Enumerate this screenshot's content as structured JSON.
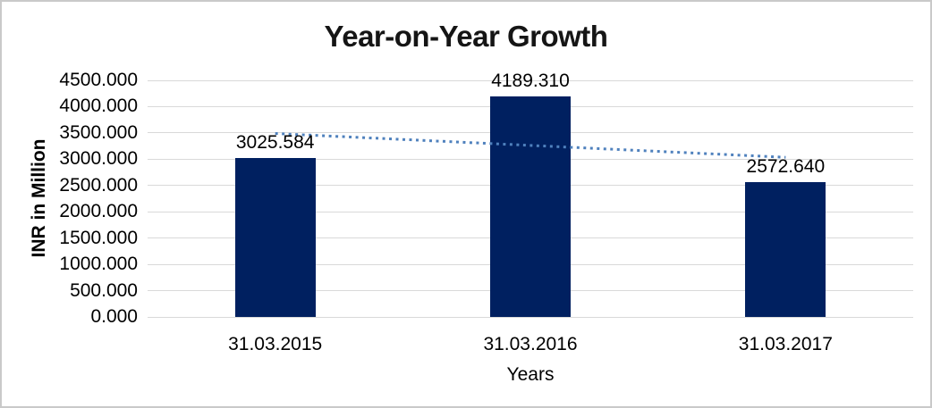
{
  "chart_data": {
    "type": "bar",
    "title": "Year-on-Year Growth",
    "xlabel": "Years",
    "ylabel": "INR in Million",
    "categories": [
      "31.03.2015",
      "31.03.2016",
      "31.03.2017"
    ],
    "values": [
      3025.584,
      4189.31,
      2572.64
    ],
    "data_labels": [
      "3025.584",
      "4189.310",
      "2572.640"
    ],
    "ylim": [
      0,
      4500
    ],
    "ytick_step": 500,
    "ytick_labels": [
      "0.000",
      "500.000",
      "1000.000",
      "1500.000",
      "2000.000",
      "2500.000",
      "3000.000",
      "3500.000",
      "4000.000",
      "4500.000"
    ],
    "grid": "horizontal",
    "legend": "none",
    "trendline": {
      "type": "linear",
      "style": "dotted"
    },
    "colors": {
      "bar": "#002060",
      "trendline": "#4F81BD",
      "gridline": "#D9D9D9",
      "text": "#000000",
      "border": "#C9C9C9"
    }
  }
}
